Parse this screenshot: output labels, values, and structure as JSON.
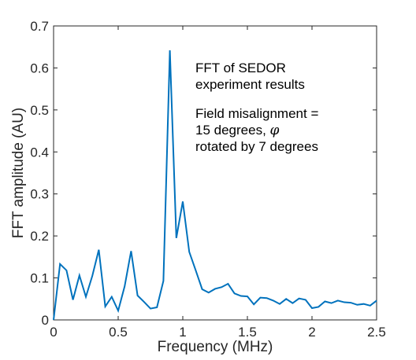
{
  "chart_data": {
    "type": "line",
    "xlabel": "Frequency (MHz)",
    "ylabel": "FFT amplitude (AU)",
    "xlim": [
      0,
      2.5
    ],
    "ylim": [
      0,
      0.7
    ],
    "xticks": [
      "0",
      "0.5",
      "1",
      "1.5",
      "2",
      "2.5"
    ],
    "yticks": [
      "0",
      "0.1",
      "0.2",
      "0.3",
      "0.4",
      "0.5",
      "0.6",
      "0.7"
    ],
    "grid": false,
    "annotation": {
      "line1": "FFT of SEDOR",
      "line2": "experiment results",
      "line3": "Field misalignment =",
      "line4": "15 degrees, ",
      "line4_symbol": "φ",
      "line5": "rotated by 7 degrees"
    },
    "line_color": "#0072bd",
    "series": [
      {
        "x": [
          0,
          0.05,
          0.1,
          0.15,
          0.2,
          0.25,
          0.3,
          0.35,
          0.4,
          0.45,
          0.5,
          0.55,
          0.6,
          0.65,
          0.7,
          0.75,
          0.8,
          0.85,
          0.9,
          0.95,
          1.0,
          1.05,
          1.1,
          1.15,
          1.2,
          1.25,
          1.3,
          1.35,
          1.4,
          1.45,
          1.5,
          1.55,
          1.6,
          1.65,
          1.7,
          1.75,
          1.8,
          1.85,
          1.9,
          1.95,
          2.0,
          2.05,
          2.1,
          2.15,
          2.2,
          2.25,
          2.3,
          2.35,
          2.4,
          2.45,
          2.5
        ],
        "values": [
          0.0,
          0.133,
          0.118,
          0.048,
          0.106,
          0.055,
          0.105,
          0.167,
          0.032,
          0.055,
          0.022,
          0.08,
          0.164,
          0.058,
          0.043,
          0.027,
          0.03,
          0.093,
          0.642,
          0.195,
          0.282,
          0.162,
          0.118,
          0.073,
          0.065,
          0.074,
          0.078,
          0.086,
          0.063,
          0.057,
          0.056,
          0.037,
          0.053,
          0.052,
          0.046,
          0.038,
          0.05,
          0.04,
          0.051,
          0.048,
          0.028,
          0.031,
          0.044,
          0.04,
          0.046,
          0.042,
          0.041,
          0.036,
          0.038,
          0.034,
          0.046
        ]
      }
    ]
  }
}
